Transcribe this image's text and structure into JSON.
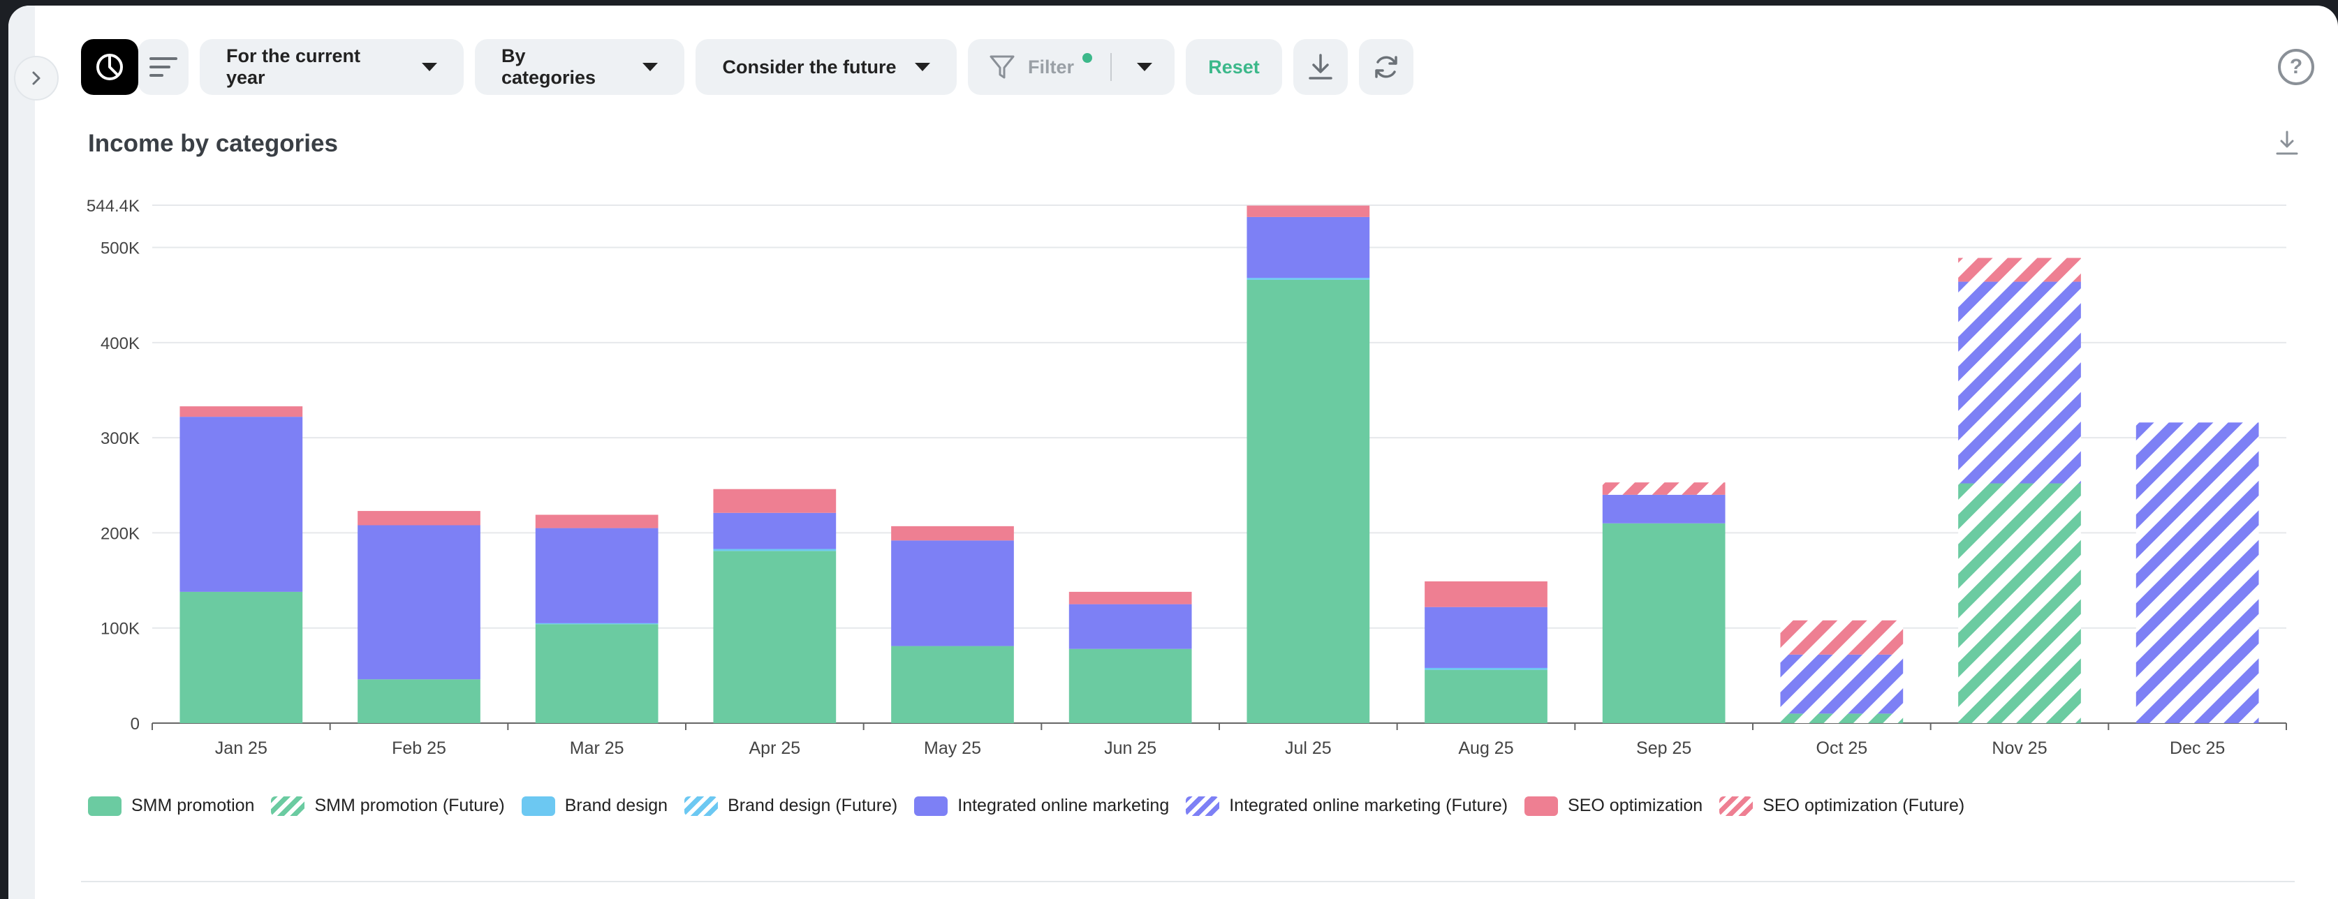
{
  "toolbar": {
    "period_label": "For the current year",
    "group_label": "By categories",
    "future_label": "Consider the future",
    "filter_label": "Filter",
    "reset_label": "Reset",
    "help_label": "?"
  },
  "colors": {
    "smm": "#6bcba1",
    "brand": "#6cc8f2",
    "integrated": "#7d80f5",
    "seo": "#ee7f92",
    "accent": "#3cb88a"
  },
  "chart_data": {
    "type": "bar",
    "stacked": true,
    "title": "Income by categories",
    "categories": [
      "Jan 25",
      "Feb 25",
      "Mar 25",
      "Apr 25",
      "May 25",
      "Jun 25",
      "Jul 25",
      "Aug 25",
      "Sep 25",
      "Oct 25",
      "Nov 25",
      "Dec 25"
    ],
    "ylim": [
      0,
      544400
    ],
    "yticks": [
      {
        "value": 0,
        "label": "0"
      },
      {
        "value": 100000,
        "label": "100K"
      },
      {
        "value": 200000,
        "label": "200K"
      },
      {
        "value": 300000,
        "label": "300K"
      },
      {
        "value": 400000,
        "label": "400K"
      },
      {
        "value": 500000,
        "label": "500K"
      },
      {
        "value": 544400,
        "label": "544.4K"
      }
    ],
    "grid": true,
    "legend_position": "bottom-left",
    "series": [
      {
        "name": "SMM promotion",
        "color_key": "smm",
        "future": false,
        "values": [
          138000,
          46000,
          104000,
          181000,
          81000,
          78000,
          466000,
          56000,
          210000,
          0,
          0,
          0
        ]
      },
      {
        "name": "SMM promotion (Future)",
        "color_key": "smm",
        "future": true,
        "values": [
          0,
          0,
          0,
          0,
          0,
          0,
          0,
          0,
          0,
          10000,
          252000,
          0
        ]
      },
      {
        "name": "Brand design",
        "color_key": "brand",
        "future": false,
        "values": [
          0,
          0,
          1000,
          2000,
          0,
          0,
          2000,
          2000,
          0,
          0,
          0,
          0
        ]
      },
      {
        "name": "Brand design (Future)",
        "color_key": "brand",
        "future": true,
        "values": [
          0,
          0,
          0,
          0,
          0,
          0,
          0,
          0,
          0,
          0,
          0,
          0
        ]
      },
      {
        "name": "Integrated online marketing",
        "color_key": "integrated",
        "future": false,
        "values": [
          184000,
          162000,
          100000,
          38000,
          111000,
          47000,
          64000,
          64000,
          30000,
          0,
          0,
          0
        ]
      },
      {
        "name": "Integrated online marketing (Future)",
        "color_key": "integrated",
        "future": true,
        "values": [
          0,
          0,
          0,
          0,
          0,
          0,
          0,
          0,
          0,
          62000,
          212000,
          316000
        ]
      },
      {
        "name": "SEO optimization",
        "color_key": "seo",
        "future": false,
        "values": [
          11000,
          15000,
          14000,
          25000,
          15000,
          13000,
          12000,
          27000,
          0,
          0,
          0,
          0
        ]
      },
      {
        "name": "SEO optimization (Future)",
        "color_key": "seo",
        "future": true,
        "values": [
          0,
          0,
          0,
          0,
          0,
          0,
          0,
          0,
          13000,
          36000,
          25000,
          0
        ]
      }
    ]
  }
}
